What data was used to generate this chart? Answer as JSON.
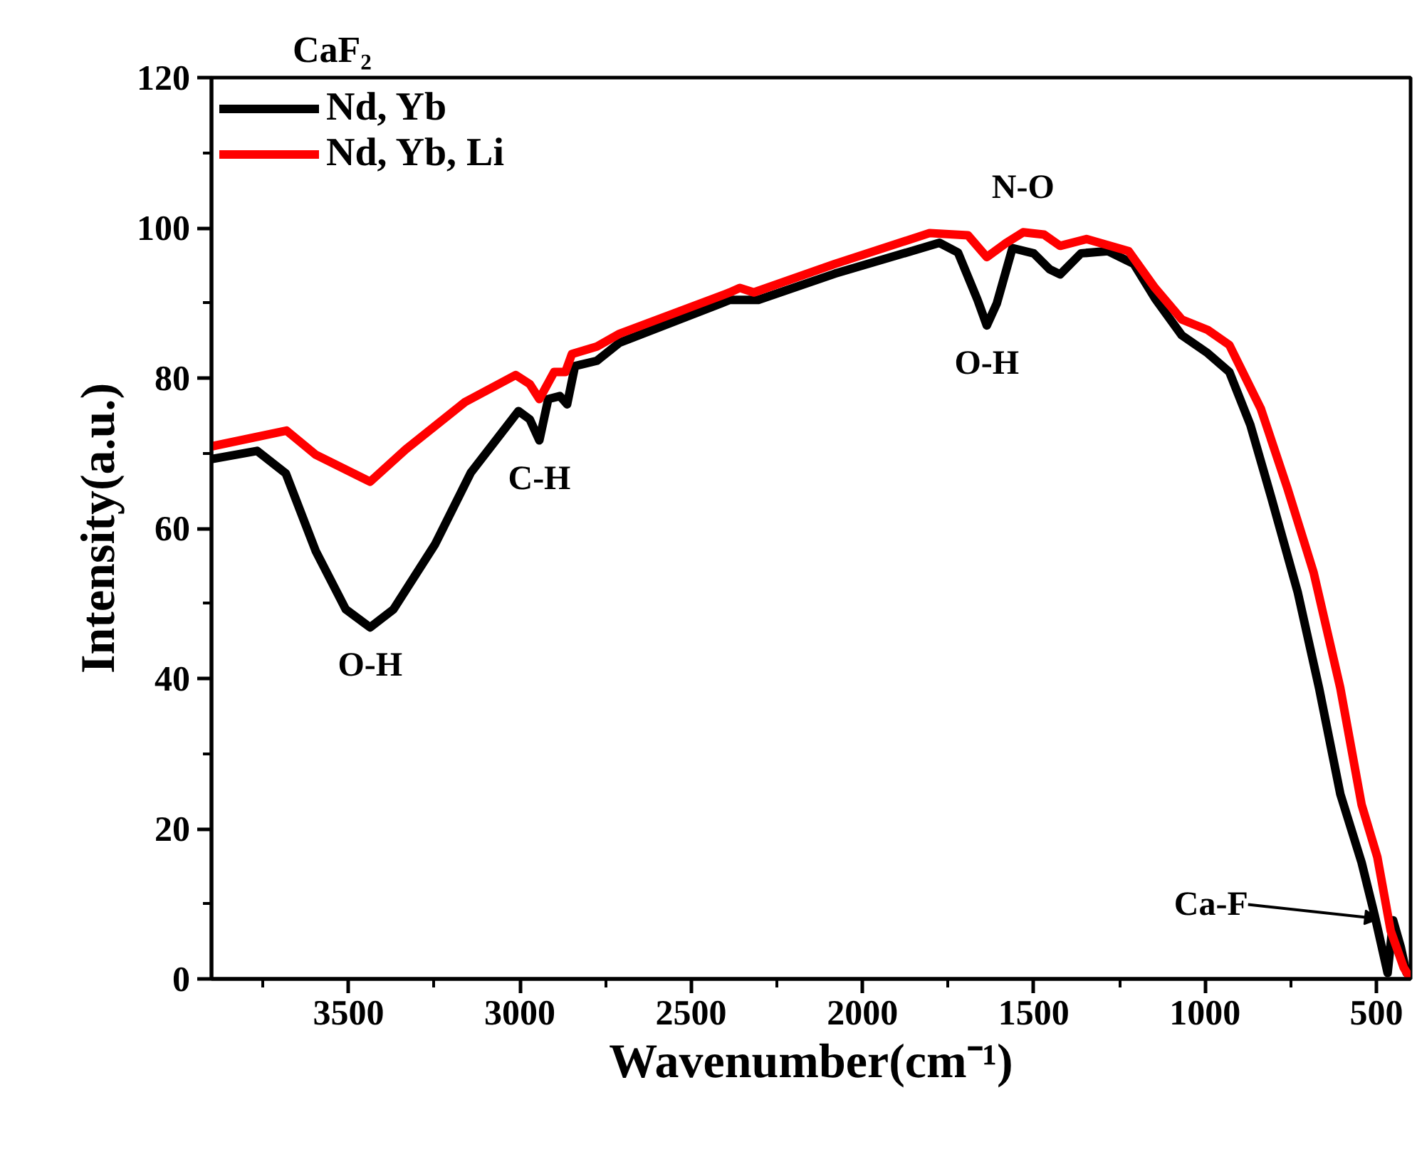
{
  "chart_data": {
    "type": "line",
    "title": "CaF₂",
    "xlabel": "Wavenumber(cm⁻¹)",
    "ylabel": "Intensity(a.u.)",
    "xlim": [
      3900,
      400
    ],
    "ylim": [
      0,
      120
    ],
    "xticks": [
      {
        "value": 3750,
        "label": null
      },
      3500,
      {
        "value": 3250,
        "label": null
      },
      3000,
      {
        "value": 2750,
        "label": null
      },
      2500,
      {
        "value": 2250,
        "label": null
      },
      2000,
      {
        "value": 1750,
        "label": null
      },
      1500,
      {
        "value": 1250,
        "label": null
      },
      1000,
      {
        "value": 750,
        "label": null
      },
      500
    ],
    "yticks": [
      0,
      {
        "value": 10,
        "label": null
      },
      20,
      {
        "value": 30,
        "label": null
      },
      40,
      {
        "value": 50,
        "label": null
      },
      60,
      {
        "value": 70,
        "label": null
      },
      80,
      {
        "value": 90,
        "label": null
      },
      100,
      {
        "value": 110,
        "label": null
      },
      120
    ],
    "grid": false,
    "legend": "top left",
    "line_style": "solid",
    "marker": "none",
    "series": [
      {
        "name": "Nd, Yb",
        "color": "#000000",
        "x": [
          3900,
          3767,
          3683,
          3596,
          3508,
          3437,
          3369,
          3247,
          3143,
          3004,
          2971,
          2943,
          2917,
          2883,
          2862,
          2839,
          2775,
          2709,
          2387,
          2304,
          2080,
          1775,
          1721,
          1664,
          1637,
          1608,
          1562,
          1500,
          1454,
          1423,
          1362,
          1284,
          1208,
          1146,
          1068,
          992,
          929,
          868,
          806,
          729,
          667,
          605,
          543,
          505,
          467,
          451,
          429,
          412
        ],
        "values": [
          69.2,
          70.3,
          67.3,
          57,
          49.2,
          46.8,
          49.2,
          57.9,
          67.4,
          75.6,
          74.5,
          71.7,
          77.2,
          77.6,
          76.5,
          81.6,
          82.3,
          84.7,
          90.4,
          90.4,
          93.9,
          98,
          96.7,
          90.4,
          87,
          89.9,
          97.3,
          96.6,
          94.5,
          93.8,
          96.6,
          96.9,
          95.2,
          90.6,
          85.7,
          83.3,
          80.8,
          73.8,
          64,
          51.4,
          38.7,
          24.6,
          15.5,
          8.5,
          0.8,
          7.8,
          4.3,
          0.8
        ]
      },
      {
        "name": "Nd, Yb, Li",
        "color": "#ff0000",
        "x": [
          3900,
          3681,
          3596,
          3437,
          3333,
          3160,
          3012,
          2971,
          2943,
          2900,
          2867,
          2848,
          2775,
          2709,
          2387,
          2358,
          2317,
          2080,
          1804,
          1692,
          1637,
          1580,
          1531,
          1470,
          1423,
          1346,
          1223,
          1146,
          1068,
          992,
          929,
          837,
          760,
          683,
          605,
          543,
          497,
          458,
          420,
          400
        ],
        "values": [
          70.9,
          73,
          69.8,
          66.2,
          70.5,
          76.8,
          80.4,
          79.2,
          77.2,
          80.8,
          80.8,
          83.2,
          84.2,
          85.9,
          91.4,
          92,
          91.4,
          95.2,
          99.3,
          99,
          96.1,
          98,
          99.4,
          99.1,
          97.6,
          98.5,
          96.9,
          92,
          87.8,
          86.4,
          84.4,
          75.9,
          65.4,
          54.1,
          38.7,
          23.2,
          16.2,
          6.4,
          1.5,
          0
        ]
      }
    ],
    "annotations": [
      {
        "text": "O-H",
        "x": 3437,
        "y": 46.8
      },
      {
        "text": "C-H",
        "x": 2943,
        "y": 71.7
      },
      {
        "text": "O-H",
        "x": 1637,
        "y": 87
      },
      {
        "text": "N-O",
        "x": 1531,
        "y": 99.4
      },
      {
        "text": "Ca-F",
        "x": 492,
        "y": 8
      }
    ]
  }
}
